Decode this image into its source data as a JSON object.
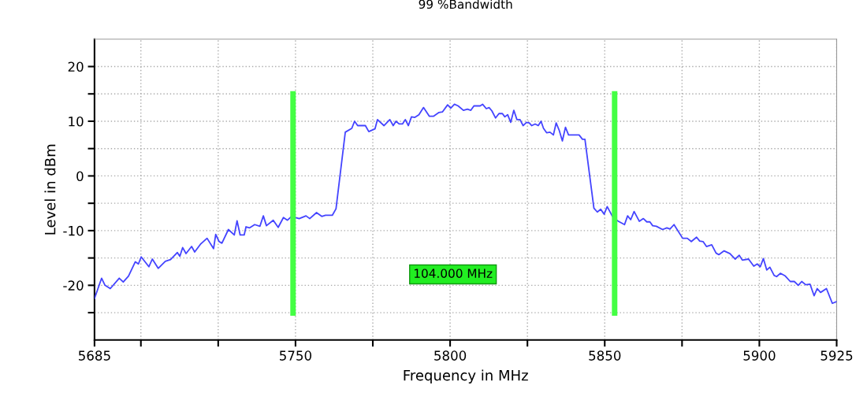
{
  "chart_data": {
    "type": "line",
    "title": "99 %Bandwidth",
    "xlabel": "Frequency in MHz",
    "ylabel": "Level in dBm",
    "annotations": [
      "104.000 MHz"
    ],
    "series": [
      {
        "color": "#4444ff",
        "x": [
          5685,
          5687.3,
          5688.4,
          5690.1,
          5693,
          5694.3,
          5696,
          5698.2,
          5699.2,
          5700.1,
          5702.6,
          5703.7,
          5705.6,
          5707.9,
          5709.6,
          5711.8,
          5712.6,
          5713.5,
          5714.6,
          5716.4,
          5717.4,
          5719.4,
          5721.4,
          5723.5,
          5724.2,
          5725.3,
          5726.2,
          5728.3,
          5730.2,
          5731.1,
          5732.1,
          5733.4,
          5734,
          5735.1,
          5736.8,
          5738.5,
          5739.6,
          5740.6,
          5742.8,
          5744.4,
          5746.1,
          5747.4,
          5748.7,
          5751.2,
          5753.4,
          5754.6,
          5756.8,
          5758.5,
          5759.7,
          5761.9,
          5763.1,
          5766.1,
          5768.2,
          5769.1,
          5770.1,
          5772.6,
          5773.7,
          5775.7,
          5776.5,
          5778.6,
          5780.5,
          5781.6,
          5782.5,
          5783.5,
          5784.6,
          5785.5,
          5786.5,
          5787.5,
          5788.6,
          5789.9,
          5791.4,
          5793.3,
          5794.6,
          5796.4,
          5797.5,
          5799.2,
          5800.2,
          5801.4,
          5802.6,
          5804.3,
          5805.6,
          5806.7,
          5807.7,
          5809.7,
          5810.5,
          5811.7,
          5812.6,
          5813.5,
          5814.7,
          5815.8,
          5816.9,
          5817.7,
          5818.6,
          5819.6,
          5820.6,
          5821.6,
          5822.6,
          5823.6,
          5824.7,
          5825.6,
          5826.4,
          5827.5,
          5828.5,
          5829.4,
          5830.2,
          5831.2,
          5832.3,
          5833.4,
          5834.3,
          5835.3,
          5836.3,
          5837.3,
          5838.3,
          5841.7,
          5842.8,
          5843.6,
          5846.5,
          5847.6,
          5848.7,
          5849.8,
          5850.8,
          5852.5,
          5854.4,
          5856.4,
          5857.4,
          5858.4,
          5859.5,
          5861.2,
          5862.5,
          5863.6,
          5864.6,
          5865.5,
          5866.7,
          5868.7,
          5870.1,
          5871.1,
          5872.4,
          5875.2,
          5876.7,
          5878,
          5879.7,
          5880.7,
          5881.8,
          5882.9,
          5884.6,
          5886,
          5886.9,
          5888.6,
          5890.5,
          5892.2,
          5893.5,
          5894.5,
          5896.5,
          5898.2,
          5899.3,
          5900.3,
          5901.3,
          5902.4,
          5903.4,
          5904.8,
          5905.6,
          5906.8,
          5908.4,
          5910,
          5911.3,
          5912.6,
          5913.7,
          5915,
          5916.4,
          5917.7,
          5918.7,
          5919.8,
          5921.7,
          5923.6,
          5924.9
        ],
        "values": [
          -22.4,
          -18.7,
          -20,
          -20.6,
          -18.7,
          -19.4,
          -18.3,
          -15.7,
          -16.1,
          -14.8,
          -16.6,
          -15.2,
          -16.9,
          -15.6,
          -15.3,
          -14,
          -14.7,
          -13.1,
          -14.2,
          -12.9,
          -13.9,
          -12.4,
          -11.4,
          -13.3,
          -10.7,
          -12,
          -12.3,
          -9.8,
          -10.8,
          -8.2,
          -10.8,
          -10.8,
          -9.3,
          -9.5,
          -8.9,
          -9.2,
          -7.3,
          -9.1,
          -8.1,
          -9.4,
          -7.6,
          -8.1,
          -7.4,
          -7.8,
          -7.3,
          -7.8,
          -6.7,
          -7.4,
          -7.2,
          -7.2,
          -6,
          8,
          8.7,
          10,
          9.2,
          9.2,
          8.1,
          8.6,
          10.3,
          9.2,
          10.3,
          9.2,
          10,
          9.5,
          9.5,
          10.3,
          9.2,
          10.8,
          10.7,
          11.2,
          12.5,
          10.9,
          10.9,
          11.6,
          11.7,
          13,
          12.4,
          13.1,
          12.8,
          12,
          12.2,
          12,
          12.8,
          12.8,
          13.1,
          12.3,
          12.5,
          11.9,
          10.6,
          11.4,
          11.4,
          10.8,
          11.2,
          9.8,
          12,
          10.3,
          10.3,
          9.2,
          9.8,
          9.7,
          9.2,
          9.5,
          9.2,
          10,
          8.7,
          7.9,
          8,
          7.5,
          9.7,
          8.3,
          6.4,
          8.9,
          7.5,
          7.5,
          6.7,
          6.7,
          -5.9,
          -6.6,
          -6.1,
          -7,
          -5.6,
          -7.4,
          -8.3,
          -8.9,
          -7.3,
          -8,
          -6.5,
          -8.3,
          -7.8,
          -8.4,
          -8.4,
          -9.1,
          -9.2,
          -9.8,
          -9.5,
          -9.7,
          -8.9,
          -11.4,
          -11.4,
          -12,
          -11.2,
          -11.9,
          -12,
          -12.9,
          -12.6,
          -14.1,
          -14.4,
          -13.7,
          -14.2,
          -15.2,
          -14.5,
          -15.4,
          -15.2,
          -16.5,
          -16.1,
          -16.6,
          -15.1,
          -17.2,
          -16.7,
          -18.2,
          -18.4,
          -17.8,
          -18.3,
          -19.3,
          -19.3,
          -20,
          -19.3,
          -19.9,
          -19.8,
          -21.9,
          -20.6,
          -21.3,
          -20.6,
          -23.3,
          -23
        ]
      }
    ],
    "xlim": [
      5685,
      5925
    ],
    "xticks": [
      5685,
      {
        "value": 5700,
        "label": null
      },
      {
        "value": 5725,
        "label": null
      },
      5750,
      {
        "value": 5775,
        "label": null
      },
      5800,
      {
        "value": 5825,
        "label": null
      },
      5850,
      {
        "value": 5875,
        "label": null
      },
      5900,
      5925
    ],
    "ylim": [
      -30,
      25
    ],
    "yticks": [
      {
        "value": -25,
        "label": null
      },
      -20,
      {
        "value": -15,
        "label": null
      },
      -10,
      {
        "value": -5,
        "label": null
      },
      0,
      {
        "value": 5,
        "label": null
      },
      10,
      {
        "value": 15,
        "label": null
      },
      20
    ],
    "ref_lines": [
      {
        "axis": "x",
        "value": 5749.2,
        "color": "#44ff44"
      },
      {
        "axis": "x",
        "value": 5853.2,
        "color": "#44ff44"
      }
    ],
    "grid": true,
    "marker": "none",
    "line_style": "solid"
  }
}
